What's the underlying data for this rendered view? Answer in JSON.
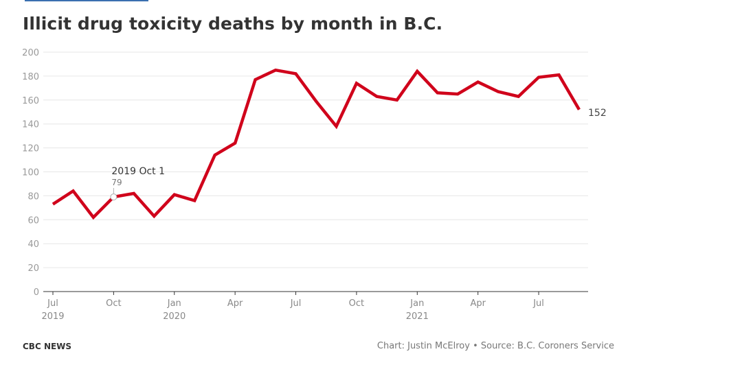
{
  "title": "Illicit drug toxicity deaths by month in B.C.",
  "footer": {
    "brand": "CBC NEWS",
    "credit": "Chart: Justin McElroy • Source: B.C. Coroners Service"
  },
  "colors": {
    "line": "#d0021b",
    "grid": "#e6e6e6",
    "axis": "#333333",
    "tick_text": "#999999",
    "x_tick_text": "#888888"
  },
  "chart_data": {
    "type": "line",
    "title": "Illicit drug toxicity deaths by month in B.C.",
    "xlabel": "",
    "ylabel": "",
    "ylim": [
      0,
      200
    ],
    "y_ticks": [
      0,
      20,
      40,
      60,
      80,
      100,
      120,
      140,
      160,
      180,
      200
    ],
    "x_ticks": [
      {
        "x": "2019-07",
        "label": "Jul",
        "year": "2019"
      },
      {
        "x": "2019-10",
        "label": "Oct",
        "year": ""
      },
      {
        "x": "2020-01",
        "label": "Jan",
        "year": "2020"
      },
      {
        "x": "2020-04",
        "label": "Apr",
        "year": ""
      },
      {
        "x": "2020-07",
        "label": "Jul",
        "year": ""
      },
      {
        "x": "2020-10",
        "label": "Oct",
        "year": ""
      },
      {
        "x": "2021-01",
        "label": "Jan",
        "year": "2021"
      },
      {
        "x": "2021-04",
        "label": "Apr",
        "year": ""
      },
      {
        "x": "2021-07",
        "label": "Jul",
        "year": ""
      }
    ],
    "grid": true,
    "series": [
      {
        "x": [
          "2019-07",
          "2019-08",
          "2019-09",
          "2019-10",
          "2019-11",
          "2019-12",
          "2020-01",
          "2020-02",
          "2020-03",
          "2020-04",
          "2020-05",
          "2020-06",
          "2020-07",
          "2020-08",
          "2020-09",
          "2020-10",
          "2020-11",
          "2020-12",
          "2021-01",
          "2021-02",
          "2021-03",
          "2021-04",
          "2021-05",
          "2021-06",
          "2021-07",
          "2021-08",
          "2021-09"
        ],
        "values": [
          73,
          84,
          62,
          79,
          82,
          63,
          81,
          76,
          114,
          124,
          177,
          185,
          182,
          159,
          138,
          174,
          163,
          160,
          184,
          166,
          165,
          175,
          167,
          163,
          179,
          181,
          152
        ]
      }
    ],
    "end_label": "152",
    "tooltip": {
      "x": "2019-10",
      "title": "2019 Oct 1",
      "value": "79"
    }
  }
}
